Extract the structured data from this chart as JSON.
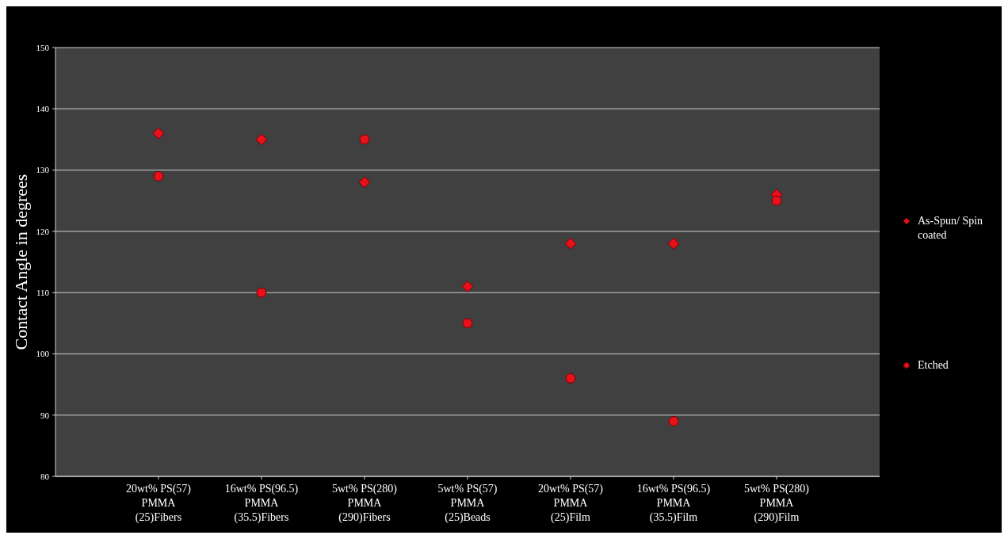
{
  "chart_data": {
    "type": "scatter",
    "ylabel": "Contact  Angle in degrees",
    "categories": [
      "20wt% PS(57)\nPMMA\n(25)Fibers",
      "16wt% PS(96.5)\nPMMA\n(35.5)Fibers",
      "5wt% PS(280)\nPMMA\n(290)Fibers",
      "5wt% PS(57)\nPMMA\n(25)Beads",
      "20wt% PS(57)\nPMMA\n(25)Film",
      "16wt% PS(96.5)\nPMMA\n(35.5)Film",
      "5wt% PS(280)\nPMMA\n(290)Film"
    ],
    "series": [
      {
        "name": "As-Spun/ Spin coated",
        "color": "#e8101a",
        "marker": "diamond",
        "values": [
          136,
          135,
          128,
          111,
          118,
          118,
          126
        ]
      },
      {
        "name": "Etched",
        "color": "#e8101a",
        "marker": "circle",
        "values": [
          129,
          110,
          135,
          105,
          96,
          89,
          125
        ]
      }
    ],
    "ylim": [
      80,
      150
    ],
    "yticks": [
      80,
      90,
      100,
      110,
      120,
      130,
      140,
      150
    ],
    "grid": "y",
    "legend": "right"
  }
}
